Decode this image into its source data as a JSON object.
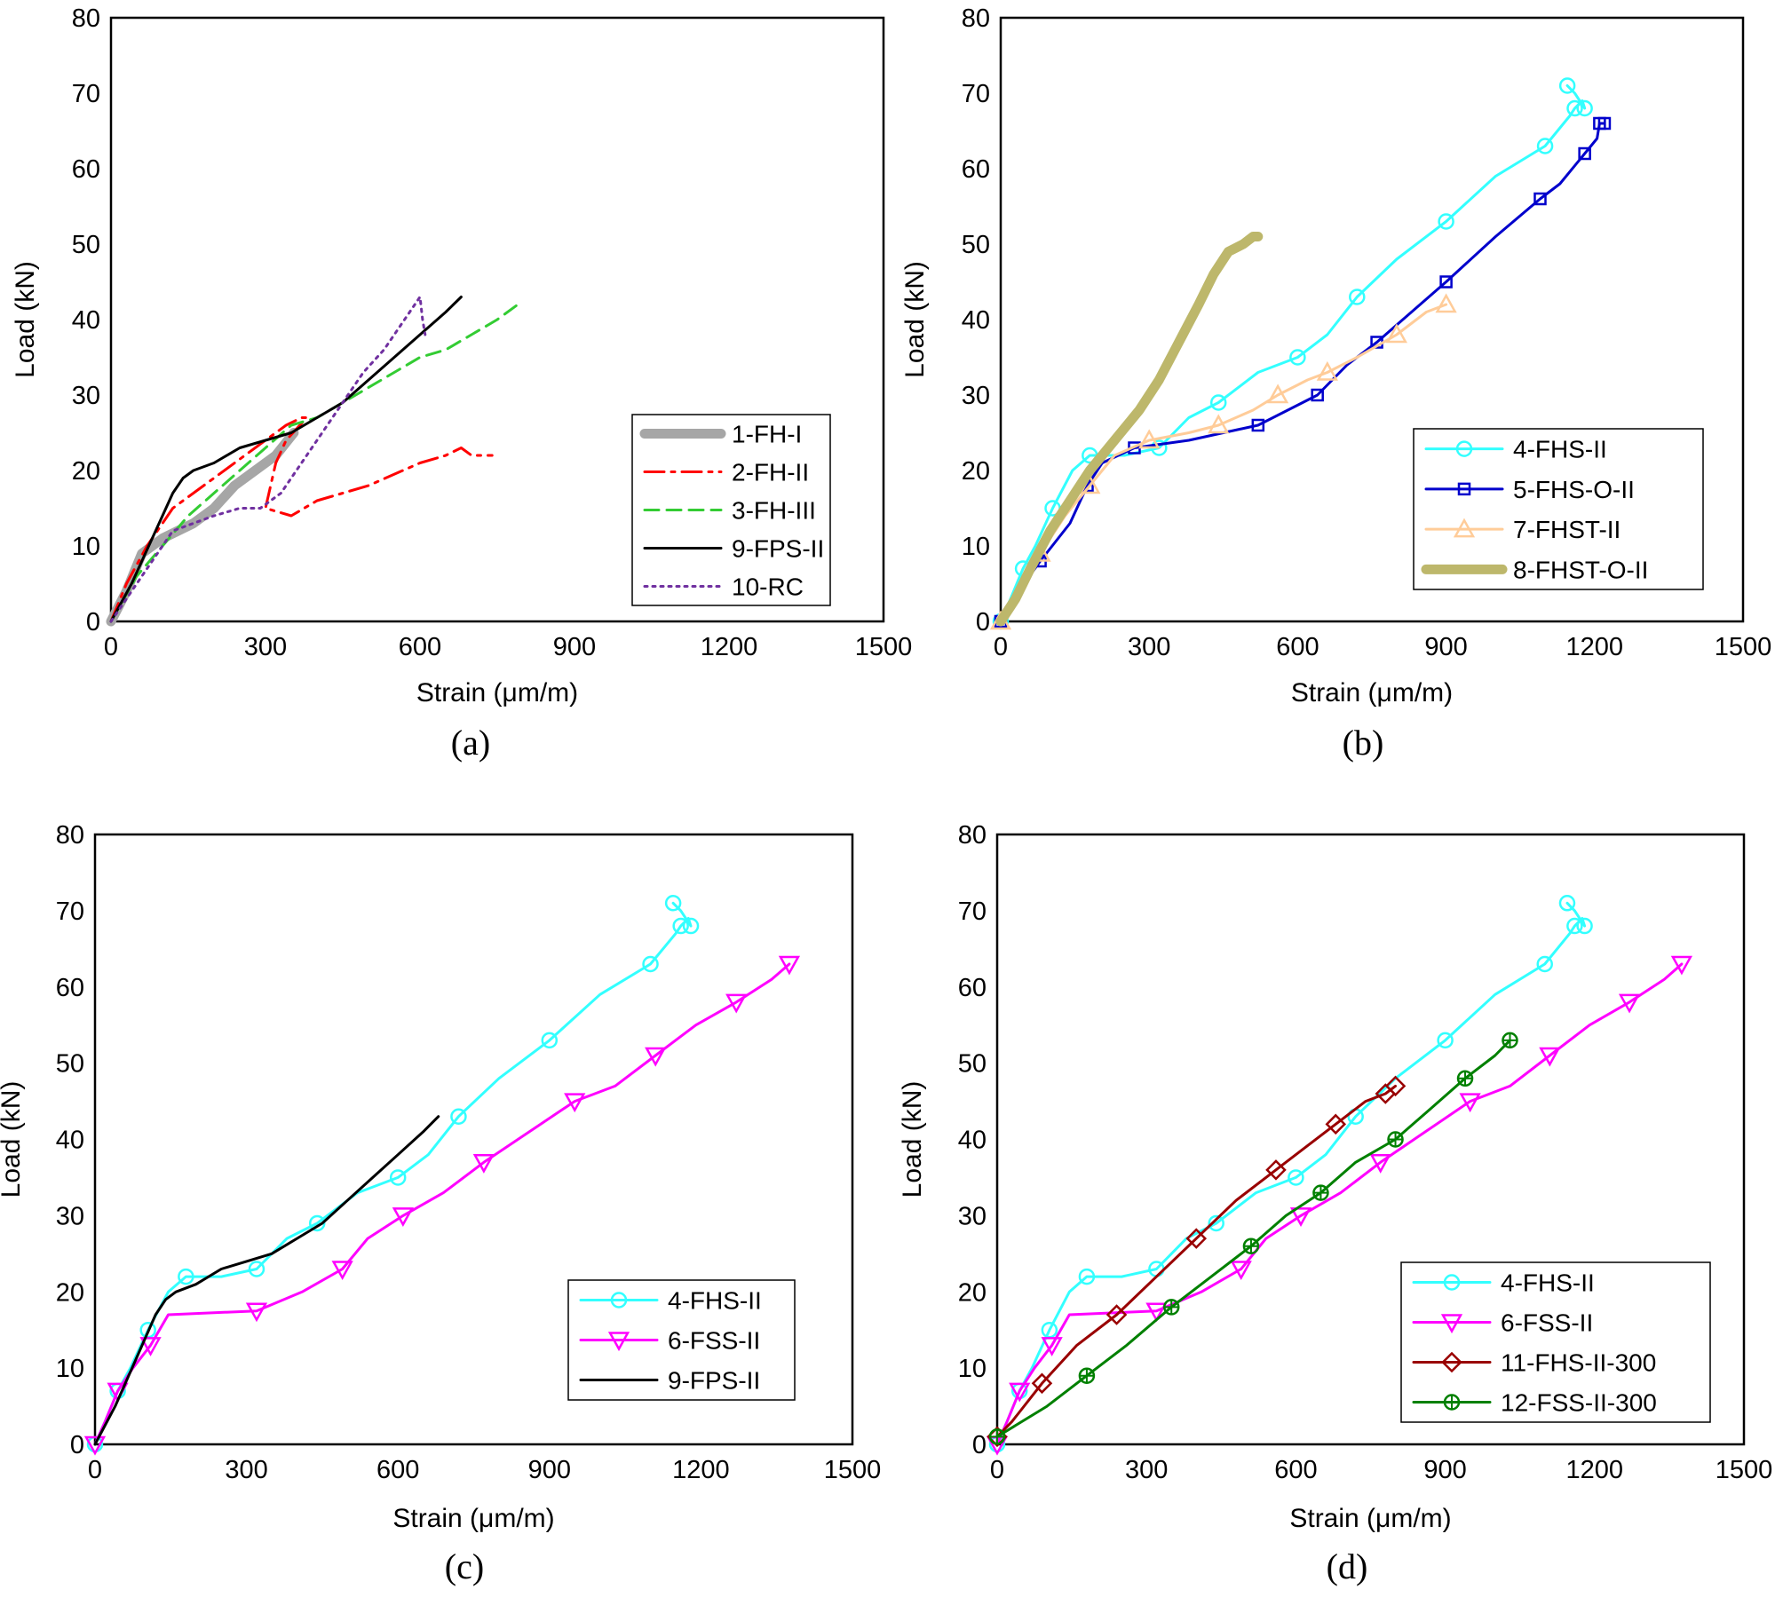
{
  "figure_labels": [
    "(a)",
    "(b)",
    "(c)",
    "(d)"
  ],
  "chart_data": [
    {
      "type": "line",
      "panel": "(a)",
      "xlabel": "Strain (μm/m)",
      "ylabel": "Load (kN)",
      "xlim": [
        0,
        1500
      ],
      "ylim": [
        0,
        80
      ],
      "xticks": [
        0,
        300,
        600,
        900,
        1200,
        1500
      ],
      "yticks": [
        0,
        10,
        20,
        30,
        40,
        50,
        60,
        70,
        80
      ],
      "legend_position": "bottom-right",
      "series": [
        {
          "name": "1-FH-I",
          "color": "#a6a6a6",
          "style": "thick",
          "marker": "none",
          "x": [
            0,
            30,
            60,
            100,
            130,
            160,
            200,
            240,
            280,
            320,
            355
          ],
          "y": [
            0,
            4,
            9,
            11,
            12,
            13,
            15,
            18,
            20,
            22,
            25
          ]
        },
        {
          "name": "2-FH-II",
          "color": "#ff0000",
          "style": "dashdot",
          "marker": "none",
          "x": [
            0,
            30,
            70,
            120,
            160,
            200,
            260,
            300,
            340,
            370,
            380,
            340,
            320,
            310,
            300,
            350,
            400,
            500,
            600,
            650,
            680,
            700,
            720,
            740
          ],
          "y": [
            0,
            5,
            10,
            15,
            17,
            19,
            22,
            24,
            26,
            27,
            27,
            24,
            21,
            18,
            15,
            14,
            16,
            18,
            21,
            22,
            23,
            22,
            22,
            22
          ]
        },
        {
          "name": "3-FH-III",
          "color": "#33cc33",
          "style": "dashed",
          "marker": "none",
          "x": [
            0,
            50,
            100,
            150,
            200,
            250,
            300,
            350,
            400,
            450,
            500,
            550,
            600,
            650,
            700,
            750,
            790
          ],
          "y": [
            0,
            6,
            10,
            14,
            17,
            20,
            23,
            26,
            27,
            29,
            31,
            33,
            35,
            36,
            38,
            40,
            42
          ]
        },
        {
          "name": "9-FPS-II",
          "color": "#000000",
          "style": "solid",
          "marker": "none",
          "x": [
            0,
            40,
            80,
            120,
            140,
            160,
            200,
            250,
            300,
            350,
            400,
            450,
            500,
            550,
            600,
            650,
            680
          ],
          "y": [
            0,
            5,
            11,
            17,
            19,
            20,
            21,
            23,
            24,
            25,
            27,
            29,
            32,
            35,
            38,
            41,
            43
          ]
        },
        {
          "name": "10-RC",
          "color": "#7030a0",
          "style": "dotted",
          "marker": "none",
          "x": [
            0,
            40,
            80,
            120,
            160,
            200,
            250,
            290,
            330,
            370,
            410,
            450,
            490,
            530,
            560,
            590,
            600,
            605,
            610
          ],
          "y": [
            0,
            4,
            8,
            12,
            13,
            14,
            15,
            15,
            17,
            21,
            25,
            29,
            33,
            36,
            39,
            42,
            43,
            40,
            38
          ]
        }
      ]
    },
    {
      "type": "line",
      "panel": "(b)",
      "xlabel": "Strain (μm/m)",
      "ylabel": "Load (kN)",
      "xlim": [
        0,
        1500
      ],
      "ylim": [
        0,
        80
      ],
      "xticks": [
        0,
        300,
        600,
        900,
        1200,
        1500
      ],
      "yticks": [
        0,
        10,
        20,
        30,
        40,
        50,
        60,
        70,
        80
      ],
      "legend_position": "bottom-right",
      "series": [
        {
          "name": "4-FHS-II",
          "color": "#33ffff",
          "style": "solid",
          "marker": "circle",
          "x": [
            0,
            20,
            45,
            70,
            105,
            145,
            180,
            250,
            320,
            380,
            440,
            520,
            600,
            660,
            720,
            800,
            900,
            1000,
            1100,
            1150,
            1160,
            1175,
            1180,
            1160,
            1145
          ],
          "y": [
            0,
            3,
            7,
            10,
            15,
            20,
            22,
            22,
            23,
            27,
            29,
            33,
            35,
            38,
            43,
            48,
            53,
            59,
            63,
            67,
            68,
            69,
            68,
            70,
            71
          ]
        },
        {
          "name": "5-FHS-O-II",
          "color": "#0000cc",
          "style": "solid",
          "marker": "square",
          "x": [
            0,
            25,
            80,
            140,
            175,
            205,
            270,
            380,
            520,
            580,
            640,
            700,
            760,
            830,
            900,
            1000,
            1090,
            1130,
            1180,
            1205,
            1210,
            1220
          ],
          "y": [
            0,
            3,
            8,
            13,
            18,
            21,
            23,
            24,
            26,
            28,
            30,
            34,
            37,
            41,
            45,
            51,
            56,
            58,
            62,
            64,
            66,
            66
          ]
        },
        {
          "name": "7-FHST-II",
          "color": "#ffcc99",
          "style": "solid",
          "marker": "triangle",
          "x": [
            0,
            40,
            80,
            130,
            180,
            230,
            300,
            380,
            440,
            510,
            560,
            620,
            660,
            720,
            800,
            860,
            900
          ],
          "y": [
            0,
            4,
            9,
            14,
            18,
            22,
            24,
            25,
            26,
            28,
            30,
            32,
            33,
            35,
            38,
            41,
            42
          ]
        },
        {
          "name": "8-FHST-O-II",
          "color": "#bdb76b",
          "style": "thick",
          "marker": "none",
          "x": [
            0,
            30,
            60,
            100,
            140,
            180,
            230,
            280,
            320,
            360,
            400,
            430,
            460,
            490,
            510,
            520
          ],
          "y": [
            0,
            3,
            7,
            12,
            16,
            20,
            24,
            28,
            32,
            37,
            42,
            46,
            49,
            50,
            51,
            51
          ]
        }
      ]
    },
    {
      "type": "line",
      "panel": "(c)",
      "xlabel": "Strain (μm/m)",
      "ylabel": "Load (kN)",
      "xlim": [
        0,
        1500
      ],
      "ylim": [
        0,
        80
      ],
      "xticks": [
        0,
        300,
        600,
        900,
        1200,
        1500
      ],
      "yticks": [
        0,
        10,
        20,
        30,
        40,
        50,
        60,
        70,
        80
      ],
      "legend_position": "bottom-right",
      "series": [
        {
          "name": "4-FHS-II",
          "color": "#33ffff",
          "style": "solid",
          "marker": "circle",
          "x": [
            0,
            20,
            45,
            70,
            105,
            145,
            180,
            250,
            320,
            380,
            440,
            520,
            600,
            660,
            720,
            800,
            900,
            1000,
            1100,
            1150,
            1160,
            1175,
            1180,
            1160,
            1145
          ],
          "y": [
            0,
            3,
            7,
            10,
            15,
            20,
            22,
            22,
            23,
            27,
            29,
            33,
            35,
            38,
            43,
            48,
            53,
            59,
            63,
            67,
            68,
            69,
            68,
            70,
            71
          ]
        },
        {
          "name": "6-FSS-II",
          "color": "#ff00ff",
          "style": "solid",
          "marker": "triangle-down",
          "x": [
            0,
            20,
            45,
            75,
            110,
            145,
            320,
            410,
            490,
            540,
            610,
            690,
            770,
            860,
            950,
            1030,
            1110,
            1190,
            1270,
            1340,
            1375
          ],
          "y": [
            0,
            3,
            7,
            10,
            13,
            17,
            17.5,
            20,
            23,
            27,
            30,
            33,
            37,
            41,
            45,
            47,
            51,
            55,
            58,
            61,
            63
          ]
        },
        {
          "name": "9-FPS-II",
          "color": "#000000",
          "style": "solid",
          "marker": "none",
          "x": [
            0,
            40,
            80,
            120,
            140,
            160,
            200,
            250,
            300,
            350,
            400,
            450,
            500,
            550,
            600,
            650,
            680
          ],
          "y": [
            0,
            5,
            11,
            17,
            19,
            20,
            21,
            23,
            24,
            25,
            27,
            29,
            32,
            35,
            38,
            41,
            43
          ]
        }
      ]
    },
    {
      "type": "line",
      "panel": "(d)",
      "xlabel": "Strain (μm/m)",
      "ylabel": "Load (kN)",
      "xlim": [
        0,
        1500
      ],
      "ylim": [
        0,
        80
      ],
      "xticks": [
        0,
        300,
        600,
        900,
        1200,
        1500
      ],
      "yticks": [
        0,
        10,
        20,
        30,
        40,
        50,
        60,
        70,
        80
      ],
      "legend_position": "bottom-right",
      "series": [
        {
          "name": "4-FHS-II",
          "color": "#33ffff",
          "style": "solid",
          "marker": "circle",
          "x": [
            0,
            20,
            45,
            70,
            105,
            145,
            180,
            250,
            320,
            380,
            440,
            520,
            600,
            660,
            720,
            800,
            900,
            1000,
            1100,
            1150,
            1160,
            1175,
            1180,
            1160,
            1145
          ],
          "y": [
            0,
            3,
            7,
            10,
            15,
            20,
            22,
            22,
            23,
            27,
            29,
            33,
            35,
            38,
            43,
            48,
            53,
            59,
            63,
            67,
            68,
            69,
            68,
            70,
            71
          ]
        },
        {
          "name": "6-FSS-II",
          "color": "#ff00ff",
          "style": "solid",
          "marker": "triangle-down",
          "x": [
            0,
            20,
            45,
            75,
            110,
            145,
            320,
            410,
            490,
            540,
            610,
            690,
            770,
            860,
            950,
            1030,
            1110,
            1190,
            1270,
            1340,
            1375
          ],
          "y": [
            0,
            3,
            7,
            10,
            13,
            17,
            17.5,
            20,
            23,
            27,
            30,
            33,
            37,
            41,
            45,
            47,
            51,
            55,
            58,
            61,
            63
          ]
        },
        {
          "name": "11-FHS-II-300",
          "color": "#990000",
          "style": "solid",
          "marker": "diamond",
          "x": [
            0,
            30,
            90,
            160,
            240,
            320,
            400,
            480,
            560,
            620,
            680,
            740,
            780,
            800
          ],
          "y": [
            1,
            3,
            8,
            13,
            17,
            22,
            27,
            32,
            36,
            39,
            42,
            45,
            46,
            47
          ]
        },
        {
          "name": "12-FSS-II-300",
          "color": "#008000",
          "style": "solid",
          "marker": "circle-plus",
          "x": [
            0,
            100,
            180,
            260,
            350,
            430,
            510,
            580,
            650,
            720,
            800,
            870,
            940,
            1000,
            1030
          ],
          "y": [
            1,
            5,
            9,
            13,
            18,
            22,
            26,
            30,
            33,
            37,
            40,
            44,
            48,
            51,
            53
          ]
        }
      ]
    }
  ]
}
